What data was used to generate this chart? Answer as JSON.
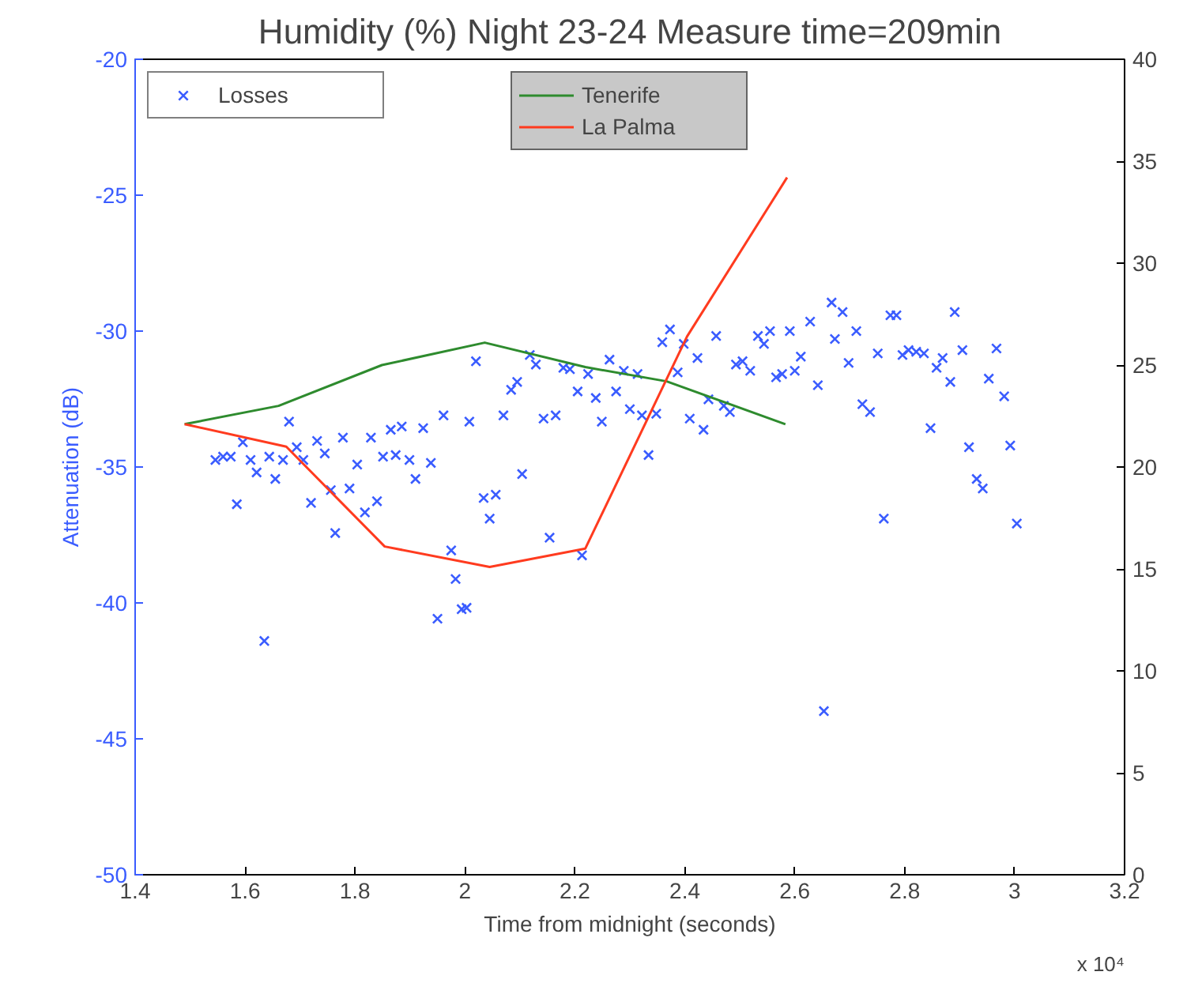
{
  "chart_data": {
    "type": "scatter",
    "title": "Humidity (%) Night 23-24 Measure time=209min",
    "xlabel": "Time from midnight (seconds)",
    "ylabel": "Attenuation (dB)",
    "annotations": [
      "x 10⁴"
    ],
    "xlim": [
      1.4,
      3.2
    ],
    "xticks": [
      1.4,
      1.6,
      1.8,
      2,
      2.2,
      2.4,
      2.6,
      2.8,
      3,
      3.2
    ],
    "ylim": [
      -50,
      -20
    ],
    "yticks": [
      -50,
      -45,
      -40,
      -35,
      -30,
      -25,
      -20
    ],
    "y2lim": [
      0,
      40
    ],
    "y2ticks": [
      0,
      5,
      10,
      15,
      20,
      25,
      30,
      35,
      40
    ],
    "legend": "top",
    "grid": false,
    "series": [
      {
        "name": "Losses",
        "marker": "x",
        "color": "#3a5cff",
        "x": [
          1.546,
          1.56,
          1.574,
          1.585,
          1.596,
          1.61,
          1.621,
          1.635,
          1.644,
          1.655,
          1.669,
          1.68,
          1.694,
          1.706,
          1.72,
          1.731,
          1.745,
          1.756,
          1.764,
          1.778,
          1.79,
          1.804,
          1.818,
          1.829,
          1.84,
          1.851,
          1.865,
          1.874,
          1.885,
          1.899,
          1.91,
          1.924,
          1.938,
          1.95,
          1.961,
          1.975,
          1.983,
          1.994,
          2.008,
          2.003,
          2.02,
          2.034,
          2.045,
          2.056,
          2.07,
          2.084,
          2.095,
          2.104,
          2.118,
          2.129,
          2.143,
          2.154,
          2.165,
          2.179,
          2.191,
          2.205,
          2.213,
          2.224,
          2.238,
          2.249,
          2.263,
          2.275,
          2.289,
          2.3,
          2.314,
          2.322,
          2.334,
          2.348,
          2.359,
          2.373,
          2.387,
          2.398,
          2.409,
          2.423,
          2.434,
          2.443,
          2.457,
          2.471,
          2.482,
          2.493,
          2.505,
          2.519,
          2.533,
          2.544,
          2.555,
          2.566,
          2.577,
          2.591,
          2.6,
          2.611,
          2.628,
          2.642,
          2.653,
          2.667,
          2.673,
          2.687,
          2.698,
          2.712,
          2.723,
          2.737,
          2.751,
          2.762,
          2.774,
          2.785,
          2.796,
          2.807,
          2.821,
          2.835,
          2.847,
          2.858,
          2.869,
          2.883,
          2.891,
          2.905,
          2.917,
          2.931,
          2.942,
          2.953,
          2.967,
          2.981,
          2.992,
          3.004
        ],
        "values": [
          -34.74,
          -34.62,
          -34.62,
          -36.37,
          -34.09,
          -34.74,
          -35.2,
          -41.4,
          -34.62,
          -35.44,
          -34.74,
          -33.33,
          -34.27,
          -34.74,
          -36.32,
          -34.04,
          -34.5,
          -35.85,
          -37.43,
          -33.92,
          -35.79,
          -34.91,
          -36.67,
          -33.92,
          -36.26,
          -34.62,
          -33.63,
          -34.56,
          -33.51,
          -34.74,
          -35.44,
          -33.57,
          -34.85,
          -40.58,
          -33.1,
          -38.07,
          -39.12,
          -40.23,
          -33.33,
          -40.18,
          -31.11,
          -36.14,
          -36.9,
          -36.02,
          -33.1,
          -32.16,
          -31.87,
          -35.26,
          -30.88,
          -31.23,
          -33.22,
          -37.6,
          -33.1,
          -31.35,
          -31.4,
          -32.22,
          -38.25,
          -31.58,
          -32.46,
          -33.33,
          -31.05,
          -32.22,
          -31.46,
          -32.87,
          -31.58,
          -33.1,
          -34.56,
          -33.04,
          -30.41,
          -29.94,
          -31.52,
          -30.47,
          -33.22,
          -30.99,
          -33.63,
          -32.51,
          -30.18,
          -32.75,
          -32.98,
          -31.23,
          -31.11,
          -31.46,
          -30.18,
          -30.47,
          -30.0,
          -31.7,
          -31.58,
          -30.0,
          -31.46,
          -30.94,
          -29.65,
          -31.99,
          -43.98,
          -28.95,
          -30.29,
          -29.3,
          -31.17,
          -30.0,
          -32.69,
          -32.98,
          -30.82,
          -36.9,
          -29.42,
          -29.42,
          -30.88,
          -30.7,
          -30.76,
          -30.82,
          -33.57,
          -31.35,
          -30.99,
          -31.87,
          -29.3,
          -30.7,
          -34.27,
          -35.44,
          -35.79,
          -31.75,
          -30.64,
          -32.4,
          -34.21,
          -37.08
        ]
      },
      {
        "name": "Tenerife",
        "type": "line",
        "axis": "y2",
        "color": "#2e8b2e",
        "x": [
          1.49,
          1.661,
          1.849,
          2.036,
          2.219,
          2.367,
          2.583
        ],
        "values": [
          22.1,
          23.0,
          25.0,
          26.1,
          24.9,
          24.2,
          22.1
        ]
      },
      {
        "name": "La Palma",
        "type": "line",
        "axis": "y2",
        "color": "#ff3b1f",
        "x": [
          1.49,
          1.675,
          1.854,
          2.045,
          2.219,
          2.404,
          2.586
        ],
        "values": [
          22.1,
          21.0,
          16.1,
          15.1,
          16.0,
          26.4,
          34.2
        ]
      }
    ]
  }
}
